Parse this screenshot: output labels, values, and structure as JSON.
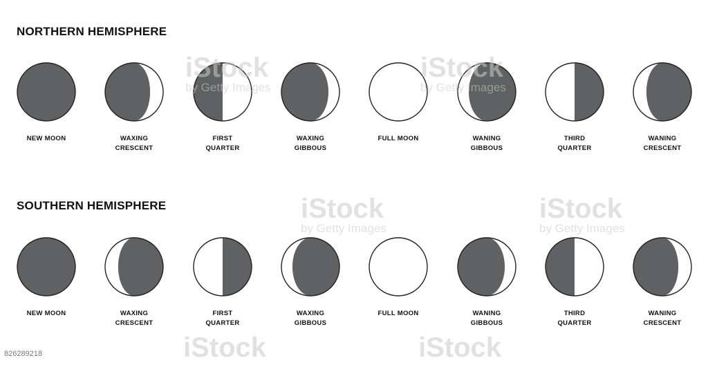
{
  "northern": {
    "title": "NORTHERN HEMISPHERE",
    "phases": [
      {
        "label": "NEW MOON",
        "type": "new"
      },
      {
        "label": "WAXING\nCRESCENT",
        "type": "crescent",
        "lit": "right"
      },
      {
        "label": "FIRST\nQUARTER",
        "type": "quarter",
        "lit": "right"
      },
      {
        "label": "WAXING\nGIBBOUS",
        "type": "gibbous",
        "lit": "right"
      },
      {
        "label": "FULL MOON",
        "type": "full"
      },
      {
        "label": "WANING\nGIBBOUS",
        "type": "gibbous",
        "lit": "left"
      },
      {
        "label": "THIRD\nQUARTER",
        "type": "quarter",
        "lit": "left"
      },
      {
        "label": "WANING\nCRESCENT",
        "type": "crescent",
        "lit": "left"
      }
    ]
  },
  "southern": {
    "title": "SOUTHERN HEMISPHERE",
    "phases": [
      {
        "label": "NEW MOON",
        "type": "new"
      },
      {
        "label": "WAXING\nCRESCENT",
        "type": "crescent",
        "lit": "left"
      },
      {
        "label": "FIRST\nQUARTER",
        "type": "quarter",
        "lit": "left"
      },
      {
        "label": "WAXING\nGIBBOUS",
        "type": "gibbous",
        "lit": "left"
      },
      {
        "label": "FULL MOON",
        "type": "full"
      },
      {
        "label": "WANING\nGIBBOUS",
        "type": "gibbous",
        "lit": "right"
      },
      {
        "label": "THIRD\nQUARTER",
        "type": "quarter",
        "lit": "right"
      },
      {
        "label": "WANING\nCRESCENT",
        "type": "crescent",
        "lit": "right"
      }
    ]
  },
  "colors": {
    "shadow": "#5f6162",
    "lit": "#ffffff",
    "outline": "#222222"
  },
  "watermark": {
    "main": "iStock",
    "sub": "by Getty Images"
  },
  "stock_id": "826289218"
}
